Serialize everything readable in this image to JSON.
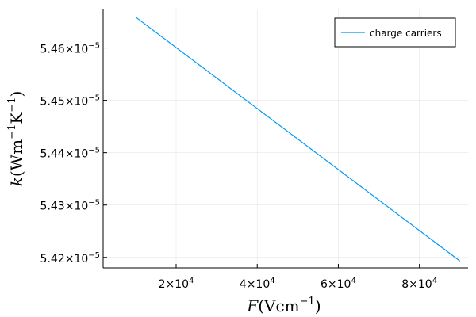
{
  "chart_data": {
    "type": "line",
    "title": "",
    "xlabel": {
      "var": "F",
      "open": "(Vcm",
      "exp": "−1",
      "close": ")"
    },
    "ylabel": {
      "var": "k",
      "open": "(Wm",
      "exp1": "−1",
      "mid": "K",
      "exp2": "−1",
      "close": ")"
    },
    "xlim": [
      2000,
      92000
    ],
    "ylim": [
      54180,
      54675
    ],
    "value_scale": "1e-9",
    "x_ticks": [
      {
        "value": 20000,
        "mant": "2×10",
        "exp": "4"
      },
      {
        "value": 40000,
        "mant": "4×10",
        "exp": "4"
      },
      {
        "value": 60000,
        "mant": "6×10",
        "exp": "4"
      },
      {
        "value": 80000,
        "mant": "8×10",
        "exp": "4"
      }
    ],
    "y_ticks": [
      {
        "value": 54200,
        "mant": "5.42×10",
        "exp": "−5"
      },
      {
        "value": 54300,
        "mant": "5.43×10",
        "exp": "−5"
      },
      {
        "value": 54400,
        "mant": "5.44×10",
        "exp": "−5"
      },
      {
        "value": 54500,
        "mant": "5.45×10",
        "exp": "−5"
      },
      {
        "value": 54600,
        "mant": "5.46×10",
        "exp": "−5"
      }
    ],
    "grid": true,
    "legend_position": "top-right",
    "series": [
      {
        "name": "charge carriers",
        "color": "#009AFA",
        "x": [
          10000,
          90000
        ],
        "y": [
          54659,
          54193
        ]
      }
    ]
  }
}
